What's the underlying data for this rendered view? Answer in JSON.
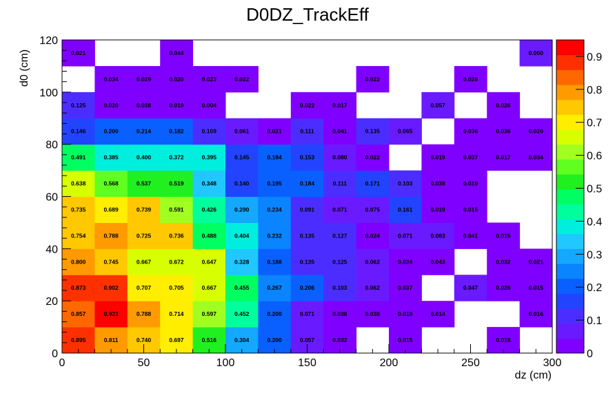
{
  "chart_data": {
    "type": "heatmap",
    "title": "D0DZ_TrackEff",
    "xlabel": "dz (cm)",
    "ylabel": "d0 (cm)",
    "xlim": [
      0,
      300
    ],
    "ylim": [
      0,
      120
    ],
    "x_bin_edges": [
      0,
      20,
      40,
      60,
      80,
      100,
      120,
      140,
      160,
      180,
      200,
      220,
      240,
      260,
      280,
      300
    ],
    "y_bin_edges": [
      0,
      10,
      20,
      30,
      40,
      50,
      60,
      70,
      80,
      90,
      100,
      110,
      120
    ],
    "x_ticks": [
      "0",
      "50",
      "100",
      "150",
      "200",
      "250",
      "300"
    ],
    "y_ticks": [
      "0",
      "20",
      "40",
      "60",
      "80",
      "100",
      "120"
    ],
    "colorbar": {
      "range": [
        0,
        0.95
      ],
      "ticks": [
        "0",
        "0.1",
        "0.2",
        "0.3",
        "0.4",
        "0.5",
        "0.6",
        "0.7",
        "0.8",
        "0.9"
      ],
      "colors": [
        "#7f00ff",
        "#6a1aff",
        "#4b2eff",
        "#2244ff",
        "#0a60ff",
        "#0a84ff",
        "#14a8ff",
        "#20c8ff",
        "#00eedd",
        "#00ff9c",
        "#00ff60",
        "#20f020",
        "#60ff20",
        "#a0ff20",
        "#d8ff00",
        "#ffee00",
        "#ffc800",
        "#ff9a00",
        "#ff6800",
        "#ff3000",
        "#ff0000"
      ]
    },
    "rows": [
      [
        "0.895",
        "0.811",
        "0.740",
        "0.697",
        "0.516",
        "0.304",
        "0.200",
        "0.057",
        "0.032",
        "",
        "0.015",
        "",
        "",
        "0.018",
        ""
      ],
      [
        "0.857",
        "0.923",
        "0.788",
        "0.714",
        "0.597",
        "0.452",
        "0.200",
        "0.071",
        "0.038",
        "0.038",
        "0.019",
        "0.014",
        "",
        "",
        "0.016"
      ],
      [
        "0.873",
        "0.902",
        "0.707",
        "0.705",
        "0.667",
        "0.455",
        "0.267",
        "0.206",
        "0.103",
        "0.062",
        "0.037",
        "",
        "0.047",
        "0.028",
        "0.015"
      ],
      [
        "0.800",
        "0.745",
        "0.667",
        "0.672",
        "0.647",
        "0.328",
        "0.188",
        "0.135",
        "0.125",
        "0.062",
        "0.024",
        "0.043",
        "",
        "0.032",
        "0.021"
      ],
      [
        "0.754",
        "0.788",
        "0.725",
        "0.736",
        "0.488",
        "0.404",
        "0.232",
        "0.135",
        "0.127",
        "0.024",
        "0.071",
        "0.083",
        "0.041",
        "0.015",
        ""
      ],
      [
        "0.735",
        "0.689",
        "0.739",
        "0.591",
        "0.426",
        "0.290",
        "0.234",
        "0.091",
        "0.071",
        "0.075",
        "0.161",
        "0.019",
        "0.015",
        "",
        ""
      ],
      [
        "0.638",
        "0.568",
        "0.537",
        "0.519",
        "0.348",
        "0.140",
        "0.195",
        "0.184",
        "0.111",
        "0.171",
        "0.103",
        "0.038",
        "0.019",
        "",
        ""
      ],
      [
        "0.491",
        "0.385",
        "0.400",
        "0.372",
        "0.395",
        "0.145",
        "0.184",
        "0.153",
        "0.080",
        "0.022",
        "",
        "0.019",
        "0.037",
        "0.017",
        "0.034"
      ],
      [
        "0.146",
        "0.200",
        "0.214",
        "0.182",
        "0.109",
        "0.061",
        "0.021",
        "0.111",
        "0.041",
        "0.135",
        "0.065",
        "",
        "0.036",
        "0.036",
        "0.020"
      ],
      [
        "0.125",
        "0.020",
        "0.038",
        "0.019",
        "0.004",
        "",
        "",
        "0.022",
        "0.017",
        "",
        "",
        "0.057",
        "",
        "0.026",
        ""
      ],
      [
        "",
        "0.034",
        "0.029",
        "0.020",
        "0.023",
        "0.022",
        "",
        "",
        "",
        "0.022",
        "",
        "",
        "0.028",
        "",
        ""
      ],
      [
        "0.021",
        "",
        "",
        "0.044",
        "",
        "",
        "",
        "",
        "",
        "",
        "",
        "",
        "",
        "",
        "0.050"
      ]
    ]
  }
}
